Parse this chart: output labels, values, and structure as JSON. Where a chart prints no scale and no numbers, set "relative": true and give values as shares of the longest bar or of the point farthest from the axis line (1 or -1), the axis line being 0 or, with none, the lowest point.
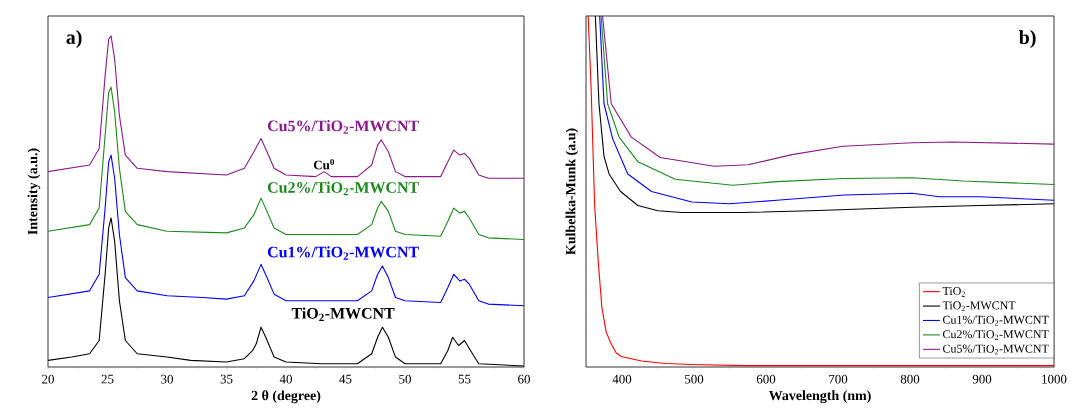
{
  "chart_data": [
    {
      "type": "line",
      "title": "a)",
      "xlabel": "2 θ (degree)",
      "ylabel": "Intensity (a.u.)",
      "relative": true,
      "legend": false,
      "xlim": [
        20,
        60
      ],
      "xticks": [
        20,
        25,
        30,
        35,
        40,
        45,
        50,
        55,
        60
      ],
      "annotations": [
        {
          "text": "Cu$^{0}$",
          "x": 43.2,
          "y": 0.59
        }
      ],
      "series": [
        {
          "name": "TiO$_{2}$-MWCNT",
          "color": "#000000",
          "x": [
            20,
            22,
            23.5,
            24.3,
            24.8,
            25.1,
            25.3,
            25.6,
            26,
            26.5,
            27.5,
            30,
            32,
            35,
            36.5,
            37.2,
            37.5,
            37.9,
            38.3,
            39,
            40,
            43,
            46,
            47.2,
            47.7,
            48.1,
            48.6,
            49.2,
            50,
            53,
            53.6,
            54.0,
            54.5,
            55.0,
            55.5,
            56.2,
            60
          ],
          "values": [
            0.02,
            0.03,
            0.04,
            0.08,
            0.28,
            0.42,
            0.45,
            0.38,
            0.2,
            0.08,
            0.04,
            0.03,
            0.02,
            0.015,
            0.025,
            0.05,
            0.07,
            0.12,
            0.09,
            0.03,
            0.015,
            0.01,
            0.01,
            0.04,
            0.09,
            0.12,
            0.09,
            0.03,
            0.01,
            0.01,
            0.05,
            0.09,
            0.065,
            0.08,
            0.05,
            0.01,
            0.003
          ]
        },
        {
          "name": "Cu1%/TiO$_{2}$-MWCNT",
          "color": "#0000ff",
          "x": [
            20,
            23.5,
            24.3,
            24.8,
            25.1,
            25.3,
            25.6,
            26,
            26.5,
            27.5,
            30,
            33,
            35,
            36.5,
            37.3,
            37.9,
            38.4,
            39,
            40,
            43,
            46,
            47.2,
            47.7,
            48.1,
            48.6,
            49.2,
            50,
            53,
            53.6,
            54.1,
            54.6,
            55.0,
            55.4,
            56.2,
            57,
            60
          ],
          "values": [
            0.21,
            0.23,
            0.28,
            0.48,
            0.62,
            0.64,
            0.57,
            0.4,
            0.27,
            0.23,
            0.215,
            0.21,
            0.205,
            0.215,
            0.26,
            0.31,
            0.27,
            0.22,
            0.2,
            0.2,
            0.2,
            0.23,
            0.28,
            0.305,
            0.27,
            0.21,
            0.2,
            0.195,
            0.24,
            0.28,
            0.26,
            0.265,
            0.25,
            0.2,
            0.19,
            0.185
          ]
        },
        {
          "name": "Cu2%/TiO$_{2}$-MWCNT",
          "color": "#1a8a1a",
          "x": [
            20,
            23.5,
            24.3,
            24.8,
            25.1,
            25.3,
            25.6,
            26,
            26.5,
            27.5,
            30,
            35,
            36.5,
            37.3,
            37.9,
            38.4,
            39,
            40,
            46,
            47.2,
            47.7,
            48.0,
            48.6,
            49.2,
            50,
            53,
            53.6,
            54.1,
            54.6,
            55.0,
            55.4,
            56.2,
            57,
            60
          ],
          "values": [
            0.41,
            0.43,
            0.48,
            0.7,
            0.83,
            0.845,
            0.77,
            0.6,
            0.47,
            0.43,
            0.41,
            0.405,
            0.42,
            0.46,
            0.51,
            0.47,
            0.42,
            0.4,
            0.4,
            0.43,
            0.48,
            0.5,
            0.47,
            0.41,
            0.4,
            0.395,
            0.44,
            0.48,
            0.465,
            0.47,
            0.45,
            0.4,
            0.39,
            0.385
          ]
        },
        {
          "name": "Cu5%/TiO$_{2}$-MWCNT",
          "color": "#8b1a8b",
          "x": [
            20,
            23.5,
            24.3,
            24.8,
            25.1,
            25.3,
            25.6,
            26,
            26.5,
            27.5,
            30,
            35,
            36.5,
            37.3,
            37.9,
            38.4,
            39,
            40,
            42.5,
            43.2,
            43.8,
            46,
            47.2,
            47.7,
            48.0,
            48.6,
            49.2,
            50,
            53,
            53.6,
            54.1,
            54.6,
            55.0,
            55.4,
            56.2,
            57,
            60
          ],
          "values": [
            0.59,
            0.61,
            0.66,
            0.88,
            0.99,
            1,
            0.93,
            0.76,
            0.64,
            0.6,
            0.59,
            0.58,
            0.6,
            0.65,
            0.69,
            0.65,
            0.6,
            0.58,
            0.575,
            0.59,
            0.575,
            0.575,
            0.61,
            0.67,
            0.686,
            0.65,
            0.59,
            0.575,
            0.575,
            0.62,
            0.655,
            0.64,
            0.645,
            0.63,
            0.58,
            0.57,
            0.57
          ]
        }
      ]
    },
    {
      "type": "line",
      "title": "b)",
      "xlabel": "Wavelength (nm)",
      "ylabel": "Kulbelka-Munk (a.u)",
      "relative": true,
      "legend": "bottom right",
      "xlim": [
        350,
        1000
      ],
      "xticks": [
        400,
        500,
        600,
        700,
        800,
        900,
        1000
      ],
      "series": [
        {
          "name": "TiO$_{2}$",
          "color": "#ff0000",
          "x": [
            353,
            357,
            362,
            367,
            372,
            378,
            384,
            392,
            399,
            427,
            460,
            497,
            568,
            1000
          ],
          "values": [
            1,
            0.8,
            0.46,
            0.3,
            0.17,
            0.1,
            0.07,
            0.04,
            0.03,
            0.017,
            0.01,
            0.007,
            0.004,
            0.004
          ]
        },
        {
          "name": "TiO$_{2}$-MWCNT",
          "color": "#000000",
          "x": [
            363,
            368,
            375,
            382,
            398,
            422,
            450,
            483,
            568,
            662,
            803,
            897,
            1000
          ],
          "values": [
            1,
            0.75,
            0.6,
            0.55,
            0.5,
            0.46,
            0.445,
            0.44,
            0.44,
            0.445,
            0.455,
            0.46,
            0.465
          ]
        },
        {
          "name": "Cu1%/TiO$_{2}$-MWCNT",
          "color": "#0000ff",
          "x": [
            369,
            375,
            387,
            408,
            441,
            497,
            549,
            615,
            709,
            803,
            841,
            897,
            1000
          ],
          "values": [
            1,
            0.75,
            0.65,
            0.55,
            0.5,
            0.47,
            0.465,
            0.475,
            0.49,
            0.495,
            0.485,
            0.485,
            0.475
          ]
        },
        {
          "name": "Cu2%/TiO$_{2}$-MWCNT",
          "color": "#1a8a1a",
          "x": [
            371,
            380,
            396,
            422,
            474,
            554,
            615,
            709,
            803,
            874,
            1000
          ],
          "values": [
            1,
            0.75,
            0.655,
            0.585,
            0.535,
            0.518,
            0.528,
            0.537,
            0.539,
            0.53,
            0.52
          ]
        },
        {
          "name": "Cu5%/TiO$_{2}$-MWCNT",
          "color": "#8b1a8b",
          "x": [
            373,
            385,
            413,
            453,
            528,
            575,
            636,
            707,
            803,
            860,
            1000
          ],
          "values": [
            1,
            0.75,
            0.655,
            0.597,
            0.572,
            0.576,
            0.605,
            0.629,
            0.639,
            0.641,
            0.635
          ]
        }
      ]
    }
  ]
}
